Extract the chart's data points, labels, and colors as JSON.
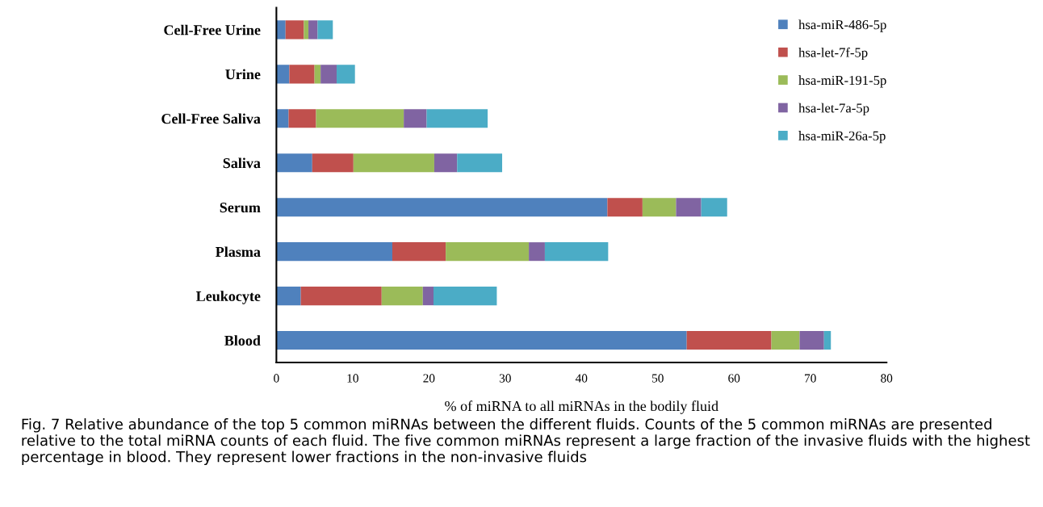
{
  "chart_data": {
    "type": "bar",
    "orientation": "horizontal",
    "stacked": true,
    "categories": [
      "Cell-Free Urine",
      "Urine",
      "Cell-Free Saliva",
      "Saliva",
      "Serum",
      "Plasma",
      "Leukocyte",
      "Blood"
    ],
    "series": [
      {
        "name": "hsa-miR-486-5p",
        "color": "#4f81bd",
        "values": [
          1.2,
          1.7,
          1.6,
          4.7,
          43.4,
          15.2,
          3.2,
          53.8
        ]
      },
      {
        "name": "hsa-let-7f-5p",
        "color": "#c0504d",
        "values": [
          2.4,
          3.3,
          3.6,
          5.4,
          4.6,
          7.0,
          10.6,
          11.1
        ]
      },
      {
        "name": "hsa-miR-191-5p",
        "color": "#9bbb59",
        "values": [
          0.6,
          0.8,
          11.5,
          10.6,
          4.4,
          10.9,
          5.4,
          3.7
        ]
      },
      {
        "name": "hsa-let-7a-5p",
        "color": "#8064a2",
        "values": [
          1.2,
          2.1,
          3.0,
          3.0,
          3.3,
          2.1,
          1.4,
          3.2
        ]
      },
      {
        "name": "hsa-miR-26a-5p",
        "color": "#4bacc6",
        "values": [
          2.0,
          2.4,
          8.0,
          5.9,
          3.4,
          8.3,
          8.3,
          0.9
        ]
      }
    ],
    "xlabel": "% of miRNA to all miRNAs in the bodily fluid",
    "xlim": [
      0,
      80
    ],
    "xticks": [
      0,
      10,
      20,
      30,
      40,
      50,
      60,
      70,
      80
    ],
    "grid": false,
    "legend": "top right",
    "annotations": [
      "Fig. 7 Relative abundance of the top 5 common miRNAs between the different fluids. Counts of the 5 common miRNAs are presented relative to the total miRNA counts of each fluid. The five common miRNAs represent a large fraction of the invasive fluids with the highest percentage in blood. They represent lower fractions in the non-invasive fluids"
    ]
  }
}
